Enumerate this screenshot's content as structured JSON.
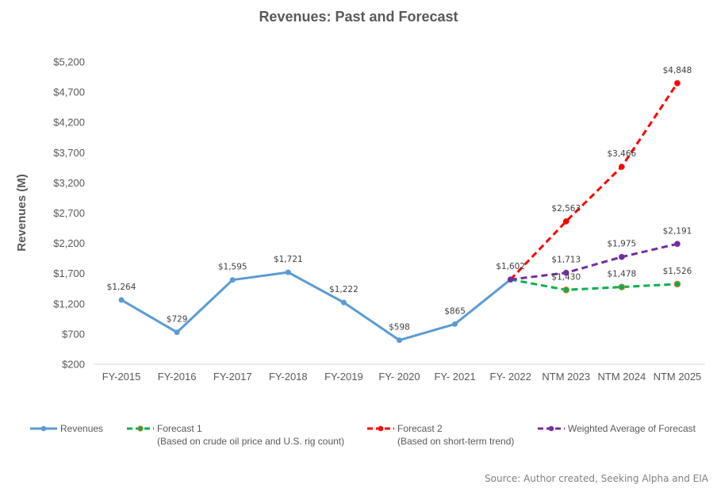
{
  "chart_data": {
    "type": "line",
    "title": "Revenues: Past and Forecast",
    "xlabel": "",
    "ylabel": "Revenues (M)",
    "ylim": [
      200,
      5200
    ],
    "y_ticks": [
      200,
      700,
      1200,
      1700,
      2200,
      2700,
      3200,
      3700,
      4200,
      4700,
      5200
    ],
    "y_tick_labels": [
      "$200",
      "$700",
      "$1,200",
      "$1,700",
      "$2,200",
      "$2,700",
      "$3,200",
      "$3,700",
      "$4,200",
      "$4,700",
      "$5,200"
    ],
    "grid": false,
    "legend_position": "bottom",
    "categories": [
      "FY-2015",
      "FY-2016",
      "FY-2017",
      "FY-2018",
      "FY-2019",
      "FY- 2020",
      "FY- 2021",
      "FY- 2022",
      "NTM 2023",
      "NTM 2024",
      "NTM 2025"
    ],
    "series": [
      {
        "name": "Revenues",
        "legend_sub": "",
        "color": "#5b9bd5",
        "dashed": false,
        "start_index": 0,
        "values": [
          1264,
          729,
          1595,
          1721,
          1222,
          598,
          865,
          1602
        ],
        "labels": [
          "$1,264",
          "$729",
          "$1,595",
          "$1,721",
          "$1,222",
          "$598",
          "$865",
          "$1,602"
        ]
      },
      {
        "name": "Forecast 1",
        "legend_sub": "(Based on crude oil price and U.S. rig count)",
        "color": "#00b050",
        "marker_edge": "#ed7d31",
        "dashed": true,
        "start_index": 7,
        "values": [
          1602,
          1430,
          1478,
          1526
        ],
        "labels": [
          "",
          "$1,430",
          "$1,478",
          "$1,526"
        ]
      },
      {
        "name": "Forecast 2",
        "legend_sub": "(Based on short-term trend)",
        "color": "#ff0000",
        "dashed": true,
        "start_index": 7,
        "values": [
          1602,
          2563,
          3466,
          4848
        ],
        "labels": [
          "",
          "$2,563",
          "$3,466",
          "$4,848"
        ]
      },
      {
        "name": "Weighted Average of Forecast",
        "legend_sub": "",
        "color": "#7030a0",
        "dashed": true,
        "start_index": 7,
        "values": [
          1602,
          1713,
          1975,
          2191
        ],
        "labels": [
          "",
          "$1,713",
          "$1,975",
          "$2,191"
        ]
      }
    ],
    "annotations": [
      "Source: Author created, Seeking Alpha and EIA"
    ]
  },
  "source_note": "Source: Author created, Seeking Alpha and EIA"
}
